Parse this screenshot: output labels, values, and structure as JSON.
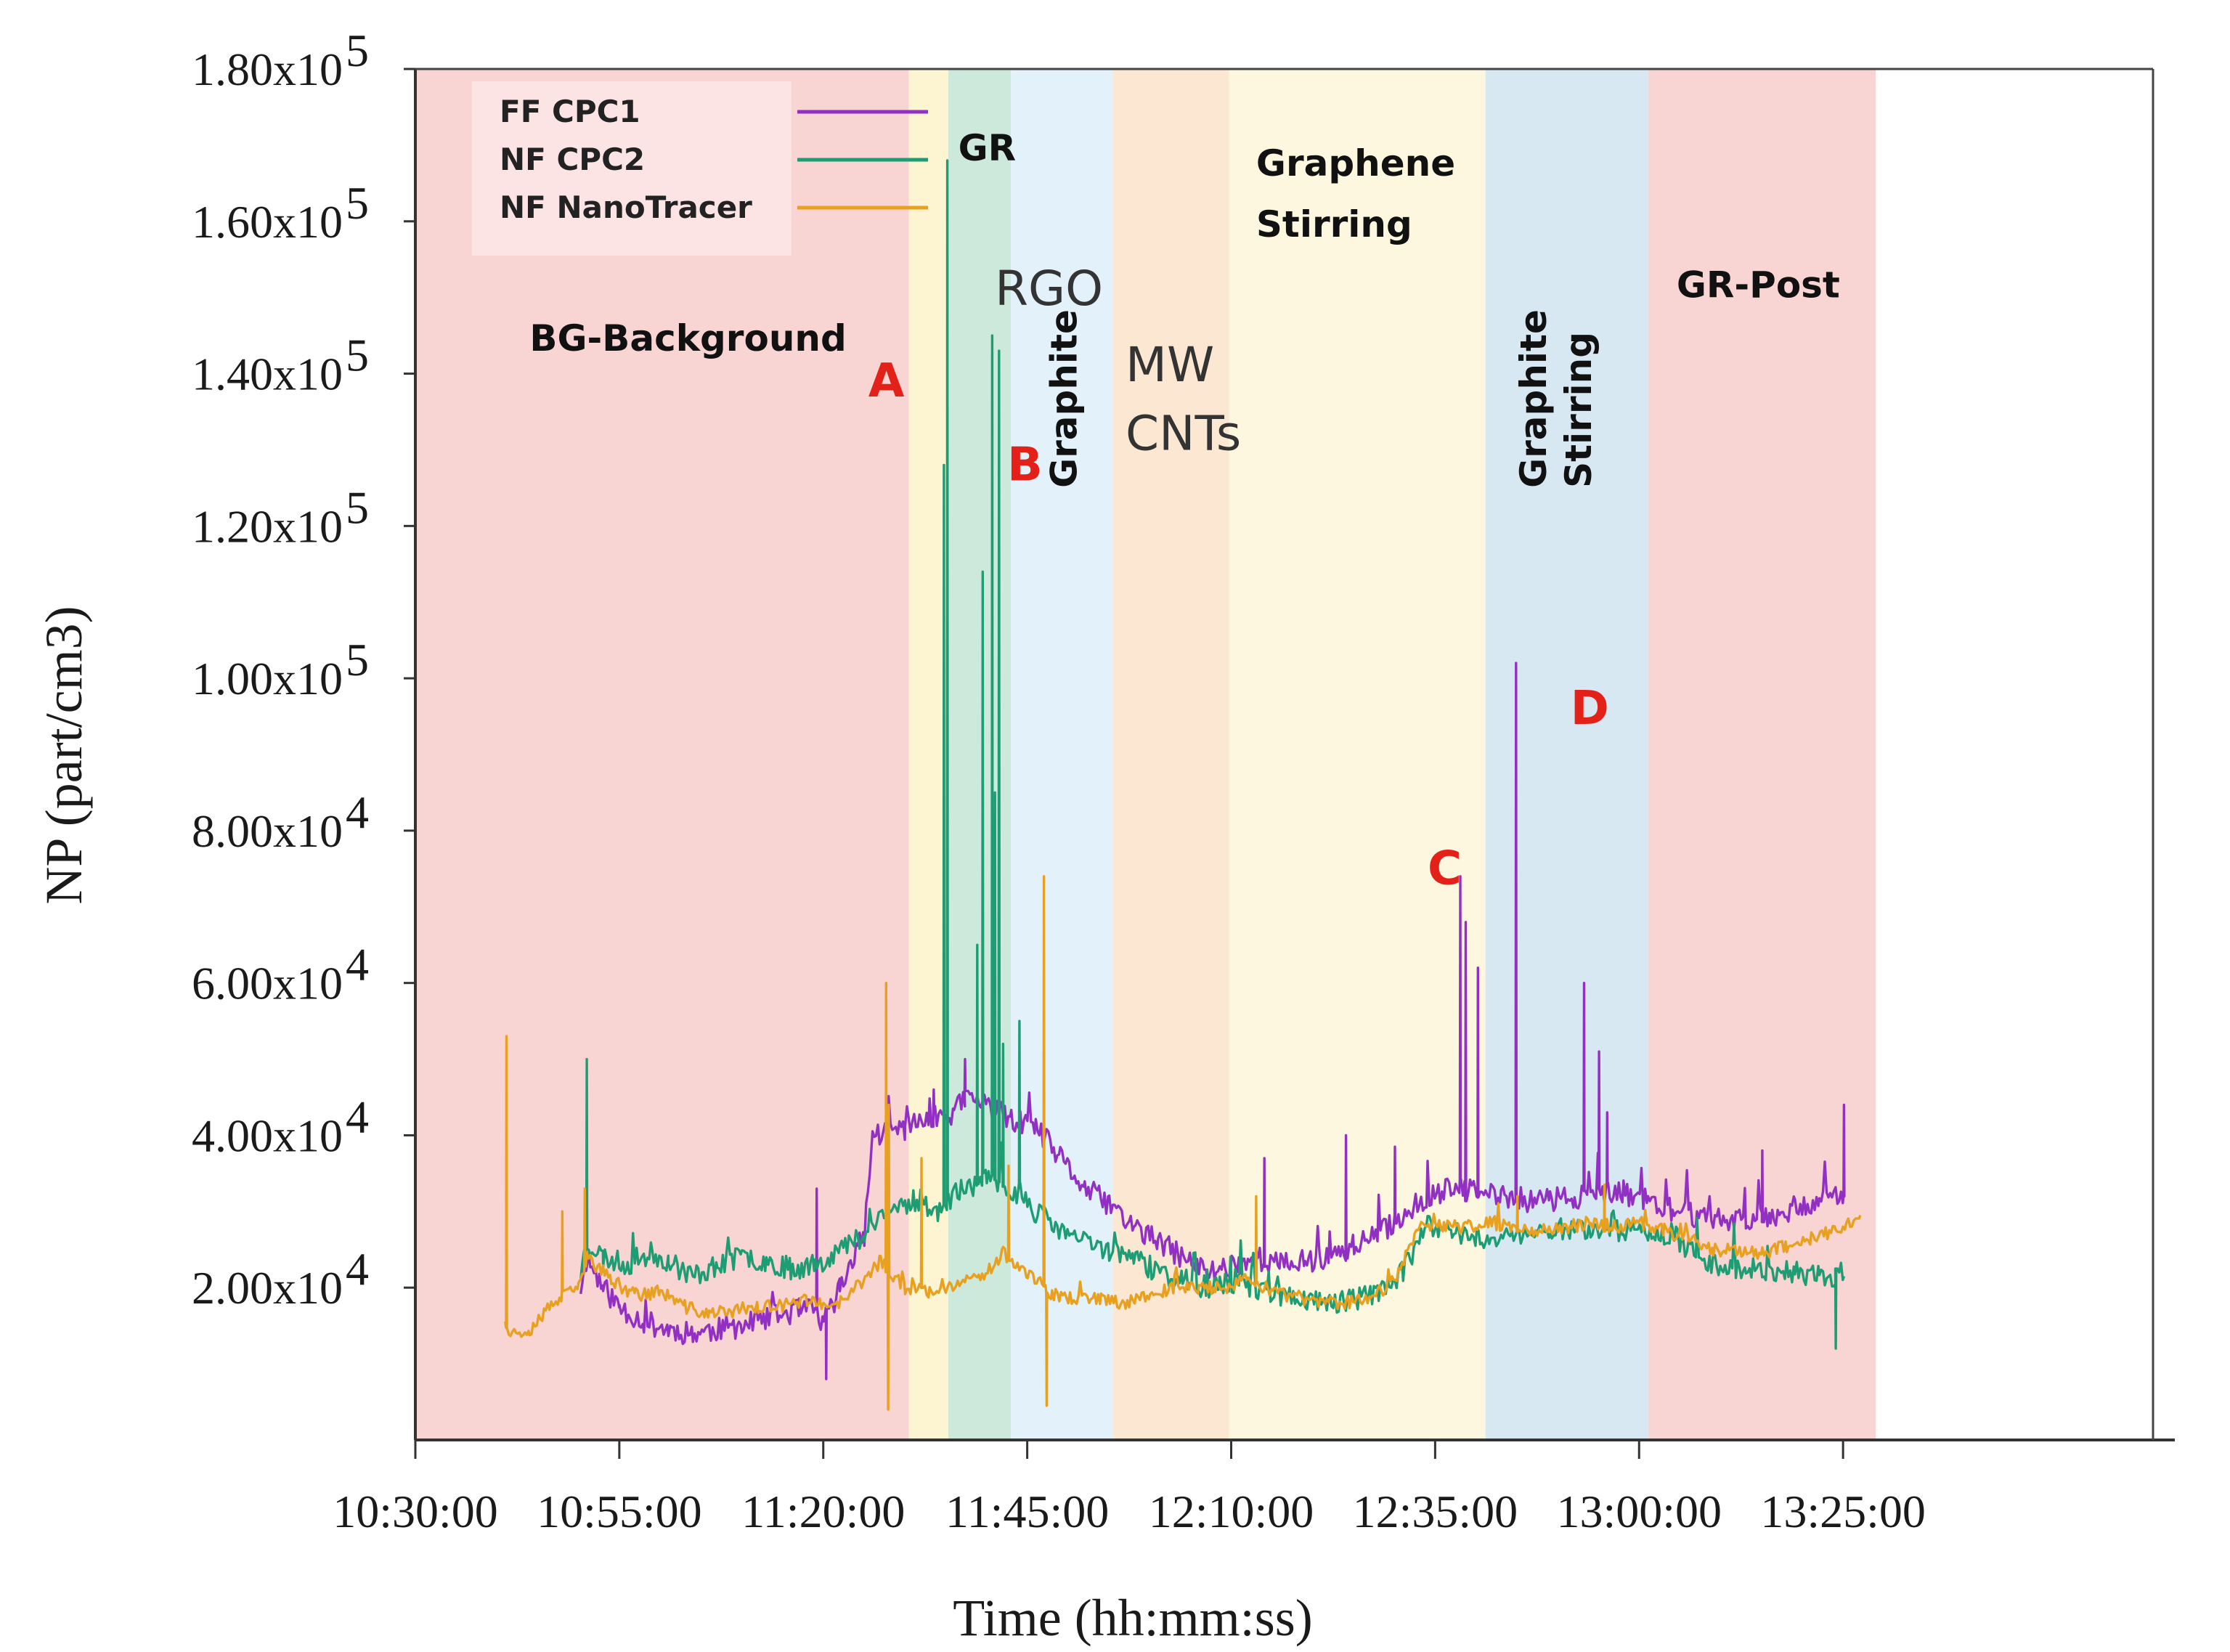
{
  "chart_data": {
    "type": "line",
    "xlabel": "Time (hh:mm:ss)",
    "ylabel": "NP (part/cm3)",
    "xlim": [
      "10:30:00",
      "13:29:00"
    ],
    "ylim": [
      0,
      180000
    ],
    "x_ticks": [
      "10:30:00",
      "10:55:00",
      "11:20:00",
      "11:45:00",
      "12:10:00",
      "12:35:00",
      "13:00:00",
      "13:25:00"
    ],
    "y_ticks": [
      {
        "value": 20000,
        "mantissa": "2.00x10",
        "exp": "4"
      },
      {
        "value": 40000,
        "mantissa": "4.00x10",
        "exp": "4"
      },
      {
        "value": 60000,
        "mantissa": "6.00x10",
        "exp": "4"
      },
      {
        "value": 80000,
        "mantissa": "8.00x10",
        "exp": "4"
      },
      {
        "value": 100000,
        "mantissa": "1.00x10",
        "exp": "5"
      },
      {
        "value": 120000,
        "mantissa": "1.20x10",
        "exp": "5"
      },
      {
        "value": 140000,
        "mantissa": "1.40x10",
        "exp": "5"
      },
      {
        "value": 160000,
        "mantissa": "1.60x10",
        "exp": "5"
      },
      {
        "value": 180000,
        "mantissa": "1.80x10",
        "exp": "5"
      }
    ],
    "bands": [
      {
        "start": "10:30:00",
        "end": "11:30:30",
        "color": "#f8d5d3"
      },
      {
        "start": "11:30:30",
        "end": "11:35:20",
        "color": "#fdf4d1"
      },
      {
        "start": "11:35:20",
        "end": "11:43:00",
        "color": "#cde9dc"
      },
      {
        "start": "11:43:00",
        "end": "11:55:30",
        "color": "#e2f1fa"
      },
      {
        "start": "11:55:30",
        "end": "12:09:45",
        "color": "#fbe7d2"
      },
      {
        "start": "12:09:45",
        "end": "12:41:10",
        "color": "#fdf7e0"
      },
      {
        "start": "12:41:10",
        "end": "13:01:10",
        "color": "#d8e8f2"
      },
      {
        "start": "13:01:10",
        "end": "13:29:00",
        "color": "#f8d5d3"
      }
    ],
    "band_labels": [
      {
        "text": "BG-Background",
        "style": "bold",
        "at": [
          "10:44:00",
          143000
        ]
      },
      {
        "text": "GR",
        "style": "bold",
        "at": [
          "11:36:30",
          168000
        ]
      },
      {
        "text": "RGO",
        "style": "light",
        "at": [
          "11:41:00",
          149000
        ]
      },
      {
        "text": "Graphite",
        "style": "bold-vertical",
        "at": [
          "11:51:00",
          125000
        ]
      },
      {
        "text": "MW",
        "style": "light",
        "at": [
          "11:57:00",
          139000
        ]
      },
      {
        "text": "CNTs",
        "style": "light",
        "at": [
          "11:57:00",
          130000
        ]
      },
      {
        "text": "Graphene",
        "style": "bold",
        "at": [
          "12:13:00",
          166000
        ]
      },
      {
        "text": "Stirring",
        "style": "bold",
        "at": [
          "12:13:00",
          158000
        ]
      },
      {
        "text": "Graphite",
        "style": "bold-vertical",
        "at": [
          "12:48:30",
          125000
        ]
      },
      {
        "text": "Stirring",
        "style": "bold-vertical",
        "at": [
          "12:54:00",
          125000
        ]
      },
      {
        "text": "GR-Post",
        "style": "bold",
        "at": [
          "13:04:30",
          150000
        ]
      }
    ],
    "annotations": [
      {
        "text": "A",
        "at": [
          "11:25:30",
          137000
        ]
      },
      {
        "text": "B",
        "at": [
          "11:42:30",
          126000
        ]
      },
      {
        "text": "C",
        "at": [
          "12:34:00",
          73000
        ]
      },
      {
        "text": "D",
        "at": [
          "12:51:30",
          94000
        ]
      }
    ],
    "series": [
      {
        "name": "FF CPC1",
        "color": "#9330c4",
        "noise": 1600,
        "seed": 11,
        "x": [
          "10:50:15",
          "10:51:00",
          "10:53:00",
          "10:55:00",
          "10:58:00",
          "11:01:00",
          "11:04:00",
          "11:07:00",
          "11:10:00",
          "11:12:00",
          "11:15:00",
          "11:17:00",
          "11:19:00",
          "11:20:00",
          "11:22:00",
          "11:25:00",
          "11:26:00",
          "11:30:00",
          "11:33:00",
          "11:36:00",
          "11:37:30",
          "11:40:00",
          "11:43:00",
          "11:46:00",
          "11:49:00",
          "11:52:00",
          "11:55:00",
          "11:58:00",
          "12:01:00",
          "12:04:00",
          "12:07:00",
          "12:10:00",
          "12:13:00",
          "12:16:00",
          "12:19:00",
          "12:22:00",
          "12:25:00",
          "12:28:00",
          "12:31:00",
          "12:34:00",
          "12:37:00",
          "12:40:00",
          "12:43:00",
          "12:46:00",
          "12:49:00",
          "12:52:00",
          "12:55:00",
          "12:58:00",
          "13:01:00",
          "13:04:00",
          "13:07:00",
          "13:10:00",
          "13:13:00",
          "13:16:00",
          "13:19:00",
          "13:22:00",
          "13:25:00"
        ],
        "y": [
          20000,
          24000,
          20000,
          17500,
          15500,
          14500,
          14000,
          14500,
          15000,
          15500,
          16500,
          17000,
          17000,
          15000,
          20000,
          27000,
          40000,
          41000,
          42000,
          43000,
          45000,
          44000,
          42000,
          41000,
          37000,
          33000,
          31000,
          28000,
          26000,
          24000,
          22000,
          23000,
          24000,
          23000,
          23500,
          24000,
          25500,
          27000,
          29500,
          32000,
          33000,
          32500,
          32000,
          31500,
          31500,
          32000,
          32000,
          32500,
          31500,
          30000,
          29500,
          29000,
          29000,
          29500,
          30500,
          31500,
          32000
        ],
        "spikes": [
          {
            "x": "11:19:10",
            "y": 33000
          },
          {
            "x": "11:20:20",
            "y": 8000
          },
          {
            "x": "11:33:30",
            "y": 46000
          },
          {
            "x": "11:37:20",
            "y": 50000
          },
          {
            "x": "12:14:00",
            "y": 37000
          },
          {
            "x": "12:24:00",
            "y": 40000
          },
          {
            "x": "12:30:00",
            "y": 38500
          },
          {
            "x": "12:38:00",
            "y": 74000
          },
          {
            "x": "12:38:40",
            "y": 68000
          },
          {
            "x": "12:40:10",
            "y": 62000
          },
          {
            "x": "12:44:50",
            "y": 102000
          },
          {
            "x": "12:53:10",
            "y": 60000
          },
          {
            "x": "12:55:00",
            "y": 51000
          },
          {
            "x": "12:56:00",
            "y": 43000
          },
          {
            "x": "13:15:00",
            "y": 38000
          },
          {
            "x": "13:25:00",
            "y": 44000
          }
        ]
      },
      {
        "name": "NF CPC2",
        "color": "#1e9c73",
        "noise": 1500,
        "seed": 23,
        "x": [
          "10:50:15",
          "10:51:00",
          "10:53:00",
          "10:56:00",
          "10:59:00",
          "11:01:00",
          "11:04:00",
          "11:07:00",
          "11:10:00",
          "11:13:00",
          "11:16:00",
          "11:19:00",
          "11:22:00",
          "11:25:00",
          "11:28:00",
          "11:31:00",
          "11:34:00",
          "11:37:00",
          "11:40:00",
          "11:43:00",
          "11:46:00",
          "11:49:00",
          "11:52:00",
          "11:55:00",
          "11:58:00",
          "12:01:00",
          "12:04:00",
          "12:07:00",
          "12:10:00",
          "12:13:00",
          "12:16:00",
          "12:19:00",
          "12:22:00",
          "12:25:00",
          "12:28:00",
          "12:31:00",
          "12:34:00",
          "12:37:00",
          "12:40:00",
          "12:43:00",
          "12:46:00",
          "12:49:00",
          "12:52:00",
          "12:55:00",
          "12:58:00",
          "13:01:00",
          "13:04:00",
          "13:07:00",
          "13:10:00",
          "13:13:00",
          "13:16:00",
          "13:19:00",
          "13:22:00",
          "13:25:00"
        ],
        "y": [
          22000,
          26000,
          24000,
          23000,
          24500,
          23500,
          21500,
          23000,
          24000,
          23500,
          22500,
          23000,
          25000,
          27000,
          30000,
          31500,
          30000,
          33000,
          34000,
          33000,
          30000,
          27500,
          26000,
          25000,
          24000,
          22000,
          21000,
          20000,
          20500,
          20000,
          19000,
          18500,
          18000,
          18500,
          19500,
          22000,
          28000,
          27500,
          26500,
          26500,
          27000,
          27500,
          28000,
          27500,
          27500,
          27500,
          27000,
          24000,
          23000,
          22500,
          22000,
          22000,
          21500,
          21500
        ],
        "spikes": [
          {
            "x": "10:51:00",
            "y": 50000
          },
          {
            "x": "11:34:45",
            "y": 128000
          },
          {
            "x": "11:35:10",
            "y": 168000
          },
          {
            "x": "11:38:50",
            "y": 65000
          },
          {
            "x": "11:39:30",
            "y": 114000
          },
          {
            "x": "11:40:40",
            "y": 145000
          },
          {
            "x": "11:41:00",
            "y": 85000
          },
          {
            "x": "11:41:30",
            "y": 143000
          },
          {
            "x": "11:42:00",
            "y": 52000
          },
          {
            "x": "11:44:00",
            "y": 55000
          },
          {
            "x": "13:24:00",
            "y": 12000
          }
        ]
      },
      {
        "name": "NF NanoTracer",
        "color": "#e8a020",
        "noise": 900,
        "seed": 37,
        "x": [
          "10:41:00",
          "10:41:40",
          "10:44:00",
          "10:47:00",
          "10:50:00",
          "10:51:00",
          "10:54:00",
          "10:57:00",
          "11:00:00",
          "11:03:00",
          "11:06:00",
          "11:09:00",
          "11:12:00",
          "11:15:00",
          "11:18:00",
          "11:21:00",
          "11:24:00",
          "11:27:00",
          "11:30:00",
          "11:33:00",
          "11:36:00",
          "11:39:00",
          "11:42:00",
          "11:45:00",
          "11:48:00",
          "11:51:00",
          "11:54:00",
          "11:57:00",
          "12:00:00",
          "12:03:00",
          "12:06:00",
          "12:09:00",
          "12:12:00",
          "12:15:00",
          "12:18:00",
          "12:21:00",
          "12:24:00",
          "12:27:00",
          "12:30:00",
          "12:33:00",
          "12:36:00",
          "12:39:00",
          "12:42:00",
          "12:45:00",
          "12:48:00",
          "12:51:00",
          "12:54:00",
          "12:57:00",
          "13:00:00",
          "13:03:00",
          "13:06:00",
          "13:09:00",
          "13:12:00",
          "13:15:00",
          "13:18:00",
          "13:21:00",
          "13:24:00",
          "13:27:00"
        ],
        "y": [
          16000,
          14000,
          14500,
          18000,
          20000,
          24000,
          21000,
          19000,
          19500,
          17500,
          16500,
          17000,
          17500,
          17500,
          18500,
          17000,
          20000,
          23500,
          20000,
          19500,
          20500,
          21000,
          24500,
          22000,
          19000,
          18500,
          18500,
          18000,
          19000,
          20000,
          20000,
          20000,
          21000,
          19500,
          18500,
          18000,
          18000,
          18500,
          21000,
          28500,
          28000,
          28000,
          28500,
          28000,
          27500,
          28000,
          28500,
          28000,
          28500,
          27500,
          26500,
          25000,
          25000,
          24500,
          25500,
          26500,
          27500,
          29500
        ],
        "spikes": [
          {
            "x": "10:41:10",
            "y": 53000
          },
          {
            "x": "10:48:00",
            "y": 30000
          },
          {
            "x": "10:50:45",
            "y": 33000
          },
          {
            "x": "11:27:40",
            "y": 60000
          },
          {
            "x": "11:27:55",
            "y": 4000
          },
          {
            "x": "11:28:00",
            "y": 44000
          },
          {
            "x": "11:32:00",
            "y": 37000
          },
          {
            "x": "11:42:40",
            "y": 36000
          },
          {
            "x": "11:47:00",
            "y": 74000
          },
          {
            "x": "11:47:20",
            "y": 4500
          },
          {
            "x": "12:13:00",
            "y": 32000
          },
          {
            "x": "12:45:00",
            "y": 32000
          },
          {
            "x": "12:55:40",
            "y": 33500
          }
        ]
      }
    ]
  }
}
